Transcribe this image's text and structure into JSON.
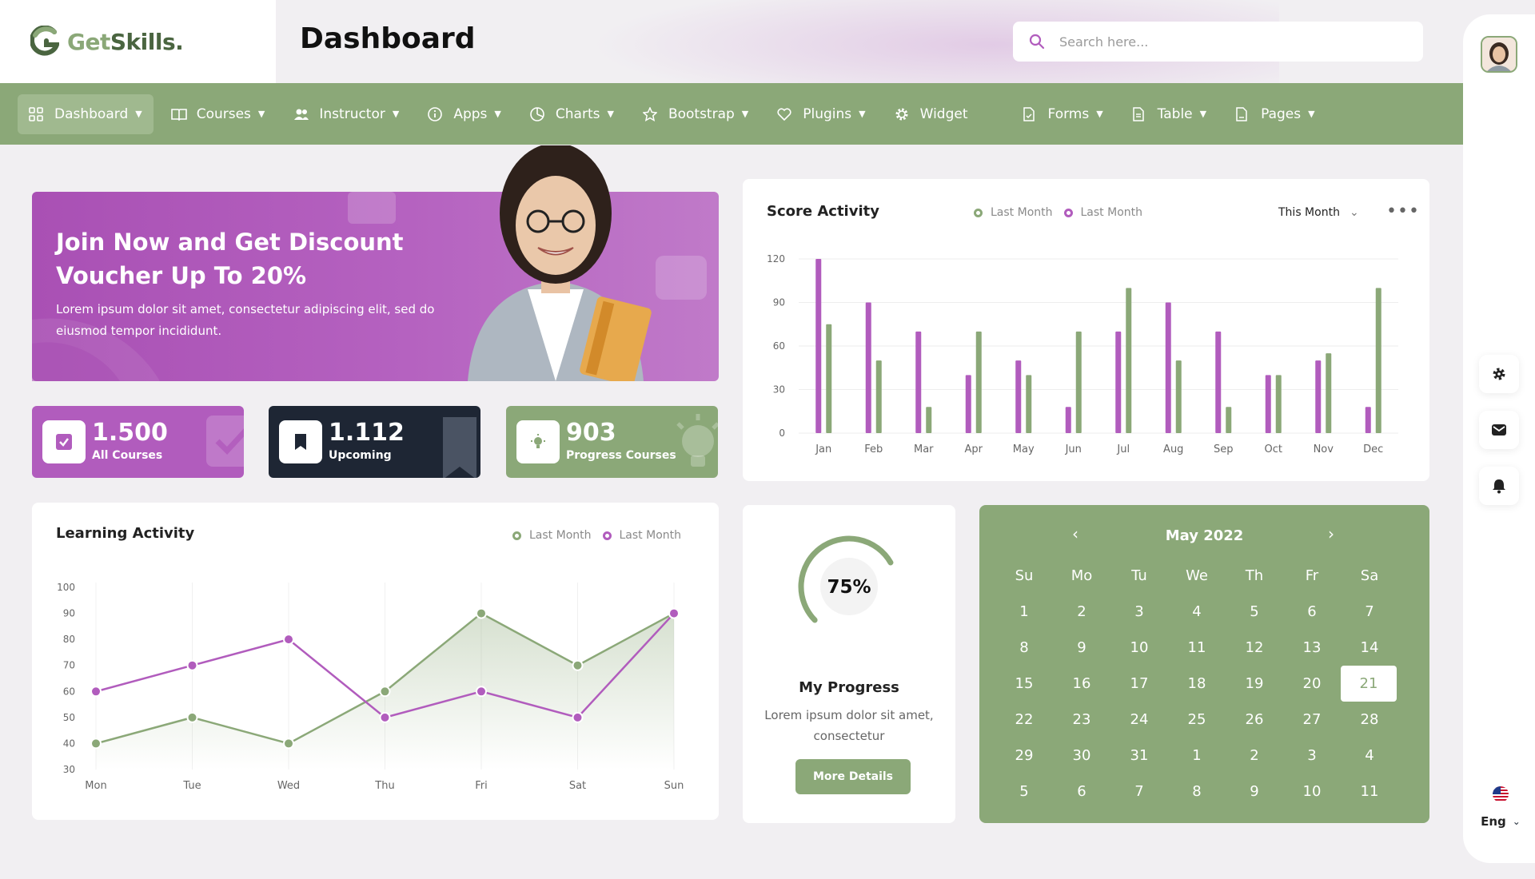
{
  "brand": {
    "name_part1": "Get",
    "name_part2": "Skills.",
    "accent": "#8ba878",
    "purple": "#b15cbd"
  },
  "header": {
    "title": "Dashboard",
    "search_placeholder": "Search here..."
  },
  "nav": {
    "items": [
      {
        "label": "Dashboard",
        "icon": "grid-icon",
        "dropdown": true,
        "active": true
      },
      {
        "label": "Courses",
        "icon": "book-icon",
        "dropdown": true
      },
      {
        "label": "Instructor",
        "icon": "users-icon",
        "dropdown": true
      },
      {
        "label": "Apps",
        "icon": "info-icon",
        "dropdown": true
      },
      {
        "label": "Charts",
        "icon": "pie-chart-icon",
        "dropdown": true
      },
      {
        "label": "Bootstrap",
        "icon": "star-icon",
        "dropdown": true
      },
      {
        "label": "Plugins",
        "icon": "heart-icon",
        "dropdown": true
      },
      {
        "label": "Widget",
        "icon": "gear-icon",
        "dropdown": false
      },
      {
        "label": "Forms",
        "icon": "file-icon",
        "dropdown": true
      },
      {
        "label": "Table",
        "icon": "table-icon",
        "dropdown": true
      },
      {
        "label": "Pages",
        "icon": "pages-icon",
        "dropdown": true
      }
    ]
  },
  "promo": {
    "title": "Join Now and Get Discount Voucher Up To 20%",
    "description": "Lorem ipsum dolor sit amet, consectetur adipiscing elit, sed do eiusmod tempor incididunt."
  },
  "stats": [
    {
      "value": "1.500",
      "label": "All Courses",
      "icon": "check-icon"
    },
    {
      "value": "1.112",
      "label": "Upcoming",
      "icon": "bookmark-icon"
    },
    {
      "value": "903",
      "label": "Progress Courses",
      "icon": "bulb-icon"
    }
  ],
  "score_activity": {
    "title": "Score Activity",
    "legend": [
      "Last Month",
      "Last Month"
    ],
    "filter": "This Month",
    "chart_data": {
      "type": "bar",
      "categories": [
        "Jan",
        "Feb",
        "Mar",
        "Apr",
        "May",
        "Jun",
        "Jul",
        "Aug",
        "Sep",
        "Oct",
        "Nov",
        "Dec"
      ],
      "series": [
        {
          "name": "Last Month",
          "color": "#b15cbd",
          "values": [
            120,
            90,
            70,
            40,
            50,
            18,
            70,
            90,
            70,
            40,
            50,
            18
          ]
        },
        {
          "name": "Last Month",
          "color": "#8ba878",
          "values": [
            75,
            50,
            18,
            70,
            40,
            70,
            100,
            50,
            18,
            40,
            55,
            100
          ]
        }
      ],
      "yticks": [
        0,
        30,
        60,
        90,
        120
      ],
      "ylim": [
        0,
        120
      ],
      "grid": true
    }
  },
  "learning_activity": {
    "title": "Learning Activity",
    "legend": [
      "Last Month",
      "Last Month"
    ],
    "chart_data": {
      "type": "line",
      "categories": [
        "Mon",
        "Tue",
        "Wed",
        "Thu",
        "Fri",
        "Sat",
        "Sun"
      ],
      "series": [
        {
          "name": "Last Month",
          "color": "#b15cbd",
          "values": [
            60,
            70,
            80,
            50,
            60,
            50,
            90
          ]
        },
        {
          "name": "Last Month",
          "color": "#8ba878",
          "values": [
            40,
            50,
            40,
            60,
            90,
            70,
            90
          ],
          "area": true
        }
      ],
      "yticks": [
        30,
        40,
        50,
        60,
        70,
        80,
        90,
        100
      ],
      "ylim": [
        30,
        100
      ]
    }
  },
  "progress": {
    "percent_label": "75%",
    "percent": 75,
    "title": "My Progress",
    "description": "Lorem ipsum dolor sit amet, consectetur",
    "button": "More Details"
  },
  "calendar": {
    "month_label": "May 2022",
    "weekdays": [
      "Su",
      "Mo",
      "Tu",
      "We",
      "Th",
      "Fr",
      "Sa"
    ],
    "days": [
      "1",
      "2",
      "3",
      "4",
      "5",
      "6",
      "7",
      "8",
      "9",
      "10",
      "11",
      "12",
      "13",
      "14",
      "15",
      "16",
      "17",
      "18",
      "19",
      "20",
      "21",
      "22",
      "23",
      "24",
      "25",
      "26",
      "27",
      "28",
      "29",
      "30",
      "31",
      "1",
      "2",
      "3",
      "4",
      "5",
      "6",
      "7",
      "8",
      "9",
      "10",
      "11"
    ],
    "selected": "21"
  },
  "language": {
    "label": "Eng"
  }
}
